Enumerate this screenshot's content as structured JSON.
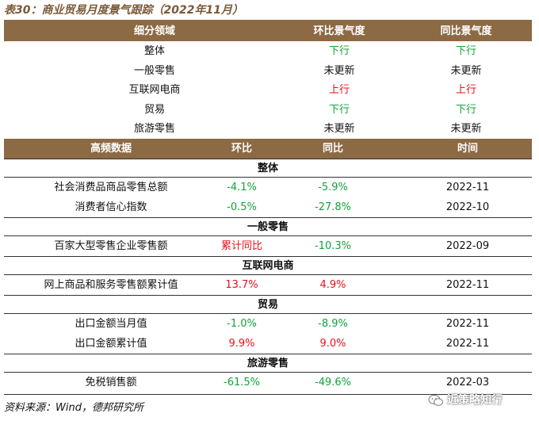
{
  "title": "表30：商业贸易月度景气跟踪（2022年11月）",
  "table1": {
    "headers": [
      "细分领域",
      "环比景气度",
      "同比景气度"
    ],
    "rows": [
      {
        "field": "整体",
        "mom": "下行",
        "mom_tone": "down",
        "yoy": "下行",
        "yoy_tone": "down"
      },
      {
        "field": "一般零售",
        "mom": "未更新",
        "mom_tone": "neutral",
        "yoy": "未更新",
        "yoy_tone": "neutral"
      },
      {
        "field": "互联网电商",
        "mom": "上行",
        "mom_tone": "up",
        "yoy": "上行",
        "yoy_tone": "up"
      },
      {
        "field": "贸易",
        "mom": "下行",
        "mom_tone": "down",
        "yoy": "下行",
        "yoy_tone": "down"
      },
      {
        "field": "旅游零售",
        "mom": "未更新",
        "mom_tone": "neutral",
        "yoy": "未更新",
        "yoy_tone": "neutral"
      }
    ]
  },
  "table2": {
    "headers": [
      "高频数据",
      "环比",
      "同比",
      "时间"
    ],
    "sections": [
      {
        "name": "整体",
        "rows": [
          {
            "item": "社会消费品商品零售总额",
            "mom": "-4.1%",
            "mom_tone": "down",
            "yoy": "-5.9%",
            "yoy_tone": "down",
            "date": "2022-11"
          },
          {
            "item": "消费者信心指数",
            "mom": "-0.5%",
            "mom_tone": "down",
            "yoy": "-27.8%",
            "yoy_tone": "down",
            "date": "2022-10"
          }
        ]
      },
      {
        "name": "一般零售",
        "rows": [
          {
            "item": "百家大型零售企业零售额",
            "mom": "累计同比",
            "mom_tone": "up",
            "yoy": "-10.3%",
            "yoy_tone": "down",
            "date": "2022-09"
          }
        ]
      },
      {
        "name": "互联网电商",
        "rows": [
          {
            "item": "网上商品和服务零售额累计值",
            "mom": "13.7%",
            "mom_tone": "up",
            "yoy": "4.9%",
            "yoy_tone": "up",
            "date": "2022-11"
          }
        ]
      },
      {
        "name": "贸易",
        "rows": [
          {
            "item": "出口金额当月值",
            "mom": "-1.0%",
            "mom_tone": "down",
            "yoy": "-8.9%",
            "yoy_tone": "down",
            "date": "2022-11"
          },
          {
            "item": "出口金额累计值",
            "mom": "9.9%",
            "mom_tone": "up",
            "yoy": "9.0%",
            "yoy_tone": "up",
            "date": "2022-11"
          }
        ]
      },
      {
        "name": "旅游零售",
        "rows": [
          {
            "item": "免税销售额",
            "mom": "-61.5%",
            "mom_tone": "down",
            "yoy": "-49.6%",
            "yoy_tone": "down",
            "date": "2022-03"
          }
        ]
      }
    ]
  },
  "source": "资料来源：Wind，德邦研究所",
  "watermark": "近策略知行",
  "watermark_icon": "wechat-icon",
  "colors": {
    "header_bg": "#8c6a44",
    "up": "#e8101a",
    "down": "#12a33a"
  }
}
